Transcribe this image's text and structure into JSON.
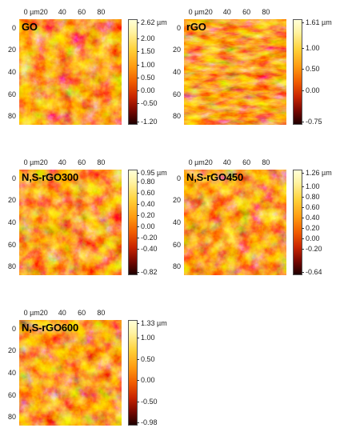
{
  "x_ticks": [
    "0 µm",
    "20",
    "40",
    "60",
    "80"
  ],
  "y_ticks": [
    "0",
    "20",
    "40",
    "60",
    "80"
  ],
  "panels": [
    {
      "label": "GO",
      "colorbar": [
        "2.62 µm",
        "2.00",
        "1.50",
        "1.00",
        "0.50",
        "0.00",
        "-0.50",
        "-1.20"
      ],
      "colorbar_values": [
        2.62,
        2.0,
        1.5,
        1.0,
        0.5,
        0.0,
        -0.5,
        -1.2
      ],
      "range": [
        -1.2,
        2.62
      ]
    },
    {
      "label": "rGO",
      "colorbar": [
        "1.61 µm",
        "1.00",
        "0.50",
        "0.00",
        "-0.75"
      ],
      "colorbar_values": [
        1.61,
        1.0,
        0.5,
        0.0,
        -0.75
      ],
      "range": [
        -0.75,
        1.61
      ]
    },
    {
      "label": "N,S-rGO300",
      "colorbar": [
        "0.95 µm",
        "0.80",
        "0.60",
        "0.40",
        "0.20",
        "0.00",
        "-0.20",
        "-0.40",
        "-0.82"
      ],
      "colorbar_values": [
        0.95,
        0.8,
        0.6,
        0.4,
        0.2,
        0.0,
        -0.2,
        -0.4,
        -0.82
      ],
      "range": [
        -0.82,
        0.95
      ]
    },
    {
      "label": "N,S-rGO450",
      "colorbar": [
        "1.26 µm",
        "1.00",
        "0.80",
        "0.60",
        "0.40",
        "0.20",
        "0.00",
        "-0.20",
        "-0.64"
      ],
      "colorbar_values": [
        1.26,
        1.0,
        0.8,
        0.6,
        0.4,
        0.2,
        0.0,
        -0.2,
        -0.64
      ],
      "range": [
        -0.64,
        1.26
      ]
    },
    {
      "label": "N,S-rGO600",
      "colorbar": [
        "1.33 µm",
        "1.00",
        "0.50",
        "0.00",
        "-0.50",
        "-0.98"
      ],
      "colorbar_values": [
        1.33,
        1.0,
        0.5,
        0.0,
        -0.5,
        -0.98
      ],
      "range": [
        -0.98,
        1.33
      ]
    }
  ]
}
